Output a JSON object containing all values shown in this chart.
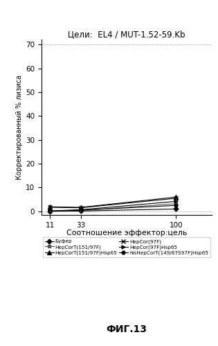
{
  "title": "Цели:  EL4 / MUT-1.52-59.Kb",
  "xlabel": "Соотношение эффектор:цель",
  "ylabel": "Корректированный % лизиса",
  "footer": "ФИГ.13",
  "x": [
    11,
    33,
    100
  ],
  "xlim": [
    5,
    125
  ],
  "ylim": [
    -1.5,
    72
  ],
  "yticks": [
    0,
    10,
    20,
    30,
    40,
    50,
    60,
    70
  ],
  "xticks": [
    11,
    33,
    100
  ],
  "series": [
    {
      "label": "Буфер",
      "y": [
        0.05,
        0.15,
        1.0
      ],
      "marker": "D",
      "color": "#000000",
      "ms": 3.5
    },
    {
      "label": "HepCorT(151/97F)",
      "y": [
        0.1,
        0.4,
        3.2
      ],
      "marker": "s",
      "color": "#555555",
      "ms": 3.5
    },
    {
      "label": "HepCorT(151/97F)Hsp65",
      "y": [
        1.9,
        1.7,
        6.0
      ],
      "marker": "^",
      "color": "#000000",
      "ms": 4.0
    },
    {
      "label": "HepCor(97F)",
      "y": [
        1.7,
        1.5,
        5.5
      ],
      "marker": "x",
      "color": "#000000",
      "ms": 4.5
    },
    {
      "label": "HepCor(97F)Hsp65",
      "y": [
        0.2,
        0.7,
        4.2
      ],
      "marker": ">",
      "color": "#000000",
      "ms": 3.5
    },
    {
      "label": "hisHepCorT(149/67S97F)Hsp65",
      "y": [
        0.1,
        0.5,
        2.5
      ],
      "marker": "o",
      "color": "#000000",
      "ms": 3.5
    }
  ],
  "background_color": "#ffffff"
}
